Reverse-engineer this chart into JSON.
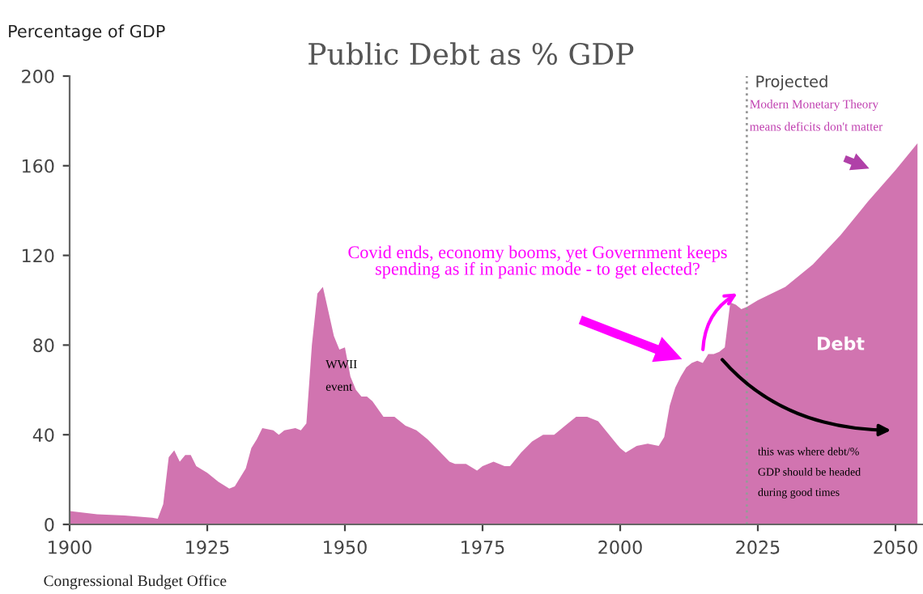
{
  "chart_data": {
    "type": "area",
    "title": "Public Debt as % GDP",
    "ylabel": "Percentage of GDP",
    "x": [
      1900,
      1905,
      1910,
      1915,
      1916,
      1917,
      1918,
      1919,
      1920,
      1921,
      1922,
      1923,
      1925,
      1927,
      1929,
      1930,
      1932,
      1933,
      1934,
      1935,
      1937,
      1938,
      1939,
      1941,
      1942,
      1943,
      1944,
      1945,
      1946,
      1947,
      1948,
      1949,
      1950,
      1951,
      1952,
      1953,
      1954,
      1955,
      1957,
      1959,
      1961,
      1963,
      1965,
      1967,
      1969,
      1970,
      1972,
      1974,
      1975,
      1977,
      1979,
      1980,
      1982,
      1984,
      1986,
      1988,
      1990,
      1992,
      1994,
      1996,
      1998,
      2000,
      2001,
      2003,
      2005,
      2007,
      2008,
      2009,
      2010,
      2011,
      2012,
      2013,
      2014,
      2015,
      2016,
      2017,
      2018,
      2019,
      2020,
      2021,
      2022,
      2023,
      2025,
      2030,
      2035,
      2040,
      2045,
      2050,
      2054
    ],
    "series": [
      {
        "name": "Debt",
        "color": "#d174b0",
        "values": [
          6,
          4.5,
          4,
          3,
          2.5,
          9,
          30,
          33,
          28,
          31,
          31,
          26,
          23,
          19,
          16,
          17,
          25,
          34,
          38,
          43,
          42,
          40,
          42,
          43,
          42,
          45,
          80,
          103,
          106,
          95,
          84,
          78,
          79,
          66,
          60,
          57,
          57,
          55,
          48,
          48,
          44,
          42,
          38,
          33,
          28,
          27,
          27,
          24,
          26,
          28,
          26,
          26,
          32,
          37,
          40,
          40,
          44,
          48,
          48,
          46,
          40,
          34,
          32,
          35,
          36,
          35,
          39,
          53,
          61,
          66,
          70,
          72,
          73,
          72,
          76,
          76,
          77,
          79,
          99,
          98,
          96,
          97,
          100,
          106,
          116,
          129,
          144,
          158,
          170
        ]
      }
    ],
    "xlim": [
      1900,
      2055
    ],
    "xticks": [
      1900,
      1925,
      1950,
      1975,
      2000,
      2025,
      2050
    ],
    "ylim": [
      0,
      200
    ],
    "yticks": [
      0,
      40,
      80,
      120,
      160,
      200
    ],
    "grid": false,
    "legend": false,
    "ref_lines": [
      {
        "axis": "x",
        "value": 2023,
        "label": "Projected",
        "color": "#999999",
        "line_style": "dotted"
      }
    ],
    "annotations": [
      "Covid ends, economy booms, yet Government keeps\nspending as if in panic mode - to get elected?",
      "WWII\n\nevent",
      "Modern Monetary Theory\n\nmeans deficits don't matter",
      "this was where debt/%\n\nGDP should be headed\n\nduring good times",
      "Congressional Budget Office"
    ]
  }
}
